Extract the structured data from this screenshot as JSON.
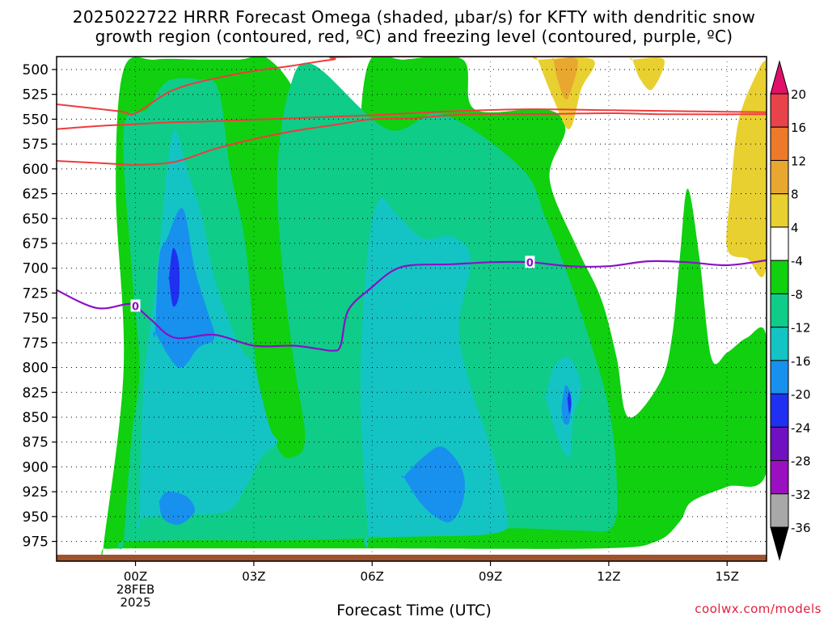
{
  "title_line1": "2025022722 HRRR Forecast Omega (shaded, µbar/s) for KFTY with dendritic snow",
  "title_line2": "growth region (contoured, red, ºC) and freezing level (contoured, purple, ºC)",
  "credit": "coolwx.com/models",
  "chart_data": {
    "type": "heatmap",
    "title": "2025022722 HRRR Forecast Omega (shaded, µbar/s) for KFTY with dendritic snow growth region (contoured, red, ºC) and freezing level (contoured, purple, ºC)",
    "xlabel": "Forecast Time (UTC)",
    "ylabel": "",
    "x_range_hours": [
      -2,
      16
    ],
    "y_range_mb": [
      487,
      990
    ],
    "y_ticks": [
      "500",
      "525",
      "550",
      "575",
      "600",
      "625",
      "650",
      "675",
      "700",
      "725",
      "750",
      "775",
      "800",
      "825",
      "850",
      "875",
      "900",
      "925",
      "950",
      "975"
    ],
    "x_ticks": [
      {
        "hour": 0,
        "lines": [
          "00Z",
          "28FEB",
          "2025"
        ]
      },
      {
        "hour": 3,
        "lines": [
          "03Z"
        ]
      },
      {
        "hour": 6,
        "lines": [
          "06Z"
        ]
      },
      {
        "hour": 9,
        "lines": [
          "09Z"
        ]
      },
      {
        "hour": 12,
        "lines": [
          "12Z"
        ]
      },
      {
        "hour": 15,
        "lines": [
          "15Z"
        ]
      }
    ],
    "colorbar": {
      "labels": [
        "20",
        "16",
        "12",
        "8",
        "4",
        "-4",
        "-8",
        "-12",
        "-16",
        "-20",
        "-24",
        "-28",
        "-32",
        "-36"
      ],
      "bins": [
        {
          "lo": 16,
          "hi": 20,
          "color": "#e8424a"
        },
        {
          "lo": 12,
          "hi": 16,
          "color": "#ec7a2a"
        },
        {
          "lo": 8,
          "hi": 12,
          "color": "#e8a830"
        },
        {
          "lo": 4,
          "hi": 8,
          "color": "#e8d030"
        },
        {
          "lo": -4,
          "hi": 4,
          "color": "#ffffff"
        },
        {
          "lo": -8,
          "hi": -4,
          "color": "#10d010"
        },
        {
          "lo": -12,
          "hi": -8,
          "color": "#0fcc88"
        },
        {
          "lo": -16,
          "hi": -12,
          "color": "#14c4c4"
        },
        {
          "lo": -20,
          "hi": -16,
          "color": "#1890ee"
        },
        {
          "lo": -24,
          "hi": -20,
          "color": "#2030f0"
        },
        {
          "lo": -28,
          "hi": -24,
          "color": "#7010c0"
        },
        {
          "lo": -32,
          "hi": -28,
          "color": "#9a10c0"
        },
        {
          "lo": -36,
          "hi": -32,
          "color": "#a8a8a8"
        }
      ],
      "top_arrow_color": "#e0106a",
      "bottom_arrow_color": "#000000"
    },
    "omega_regions": [
      {
        "level": "-4",
        "color": "#10d010",
        "polygon": [
          [
            -0.8,
            976
          ],
          [
            -0.3,
            800
          ],
          [
            -0.5,
            620
          ],
          [
            -0.3,
            500
          ],
          [
            0.5,
            490
          ],
          [
            1.6,
            490
          ],
          [
            2.6,
            490
          ],
          [
            3.4,
            490
          ],
          [
            4.2,
            540
          ],
          [
            4.5,
            650
          ],
          [
            4.7,
            820
          ],
          [
            4.9,
            880
          ],
          [
            5.3,
            860
          ],
          [
            5.4,
            760
          ],
          [
            5.6,
            620
          ],
          [
            5.9,
            495
          ],
          [
            6.8,
            490
          ],
          [
            8.3,
            490
          ],
          [
            8.6,
            540
          ],
          [
            10.4,
            540
          ],
          [
            10.9,
            560
          ],
          [
            10.5,
            610
          ],
          [
            11.2,
            680
          ],
          [
            11.8,
            730
          ],
          [
            12.2,
            790
          ],
          [
            12.5,
            850
          ],
          [
            13.3,
            815
          ],
          [
            13.6,
            770
          ],
          [
            13.8,
            690
          ],
          [
            14.0,
            620
          ],
          [
            14.3,
            690
          ],
          [
            14.6,
            790
          ],
          [
            15.0,
            785
          ],
          [
            15.5,
            770
          ],
          [
            16,
            770
          ],
          [
            16,
            905
          ],
          [
            15.0,
            920
          ],
          [
            14.1,
            935
          ],
          [
            13.8,
            955
          ],
          [
            13.2,
            975
          ],
          [
            11.8,
            982
          ],
          [
            6.0,
            982
          ],
          [
            2.5,
            982
          ],
          [
            -0.2,
            982
          ],
          [
            -0.8,
            982
          ]
        ]
      },
      {
        "level": "-8",
        "color": "#0fcc88",
        "polygon": [
          [
            -0.3,
            975
          ],
          [
            -0.1,
            870
          ],
          [
            0.1,
            800
          ],
          [
            -0.1,
            700
          ],
          [
            -0.3,
            560
          ],
          [
            0.3,
            540
          ],
          [
            0.8,
            512
          ],
          [
            1.6,
            510
          ],
          [
            2.1,
            520
          ],
          [
            2.4,
            600
          ],
          [
            2.8,
            680
          ],
          [
            3.1,
            810
          ],
          [
            3.6,
            880
          ],
          [
            4.0,
            890
          ],
          [
            4.3,
            870
          ],
          [
            4.0,
            790
          ],
          [
            3.7,
            690
          ],
          [
            3.6,
            600
          ],
          [
            3.9,
            520
          ],
          [
            4.5,
            495
          ],
          [
            6.4,
            560
          ],
          [
            7.8,
            545
          ],
          [
            9.8,
            600
          ],
          [
            10.4,
            650
          ],
          [
            10.9,
            700
          ],
          [
            11.5,
            770
          ],
          [
            12.0,
            840
          ],
          [
            12.2,
            910
          ],
          [
            12.1,
            960
          ],
          [
            11.2,
            964
          ],
          [
            9.4,
            962
          ],
          [
            7.0,
            970
          ],
          [
            4.0,
            974
          ],
          [
            1.5,
            974
          ],
          [
            -0.3,
            975
          ]
        ]
      },
      {
        "level": "-12",
        "color": "#14c4c4",
        "polygon": [
          [
            0.1,
            952
          ],
          [
            0.2,
            820
          ],
          [
            0.5,
            720
          ],
          [
            0.7,
            640
          ],
          [
            0.8,
            600
          ],
          [
            1.0,
            560
          ],
          [
            1.3,
            600
          ],
          [
            1.7,
            650
          ],
          [
            2.0,
            710
          ],
          [
            2.6,
            775
          ],
          [
            3.0,
            800
          ],
          [
            3.4,
            860
          ],
          [
            3.6,
            875
          ],
          [
            3.2,
            890
          ],
          [
            2.8,
            920
          ],
          [
            2.3,
            945
          ],
          [
            1.0,
            948
          ],
          [
            0.1,
            952
          ]
        ]
      },
      {
        "level": "-12",
        "color": "#14c4c4",
        "polygon": [
          [
            5.9,
            970
          ],
          [
            5.7,
            820
          ],
          [
            5.9,
            680
          ],
          [
            6.2,
            630
          ],
          [
            6.6,
            645
          ],
          [
            7.3,
            670
          ],
          [
            8.0,
            668
          ],
          [
            8.5,
            690
          ],
          [
            8.2,
            760
          ],
          [
            8.5,
            820
          ],
          [
            9.0,
            880
          ],
          [
            9.4,
            945
          ],
          [
            9.2,
            966
          ],
          [
            7.3,
            970
          ],
          [
            5.9,
            970
          ]
        ]
      },
      {
        "level": "-12",
        "color": "#14c4c4",
        "polygon": [
          [
            10.4,
            830
          ],
          [
            10.6,
            800
          ],
          [
            11.0,
            790
          ],
          [
            11.3,
            820
          ],
          [
            11.1,
            850
          ],
          [
            11.0,
            890
          ],
          [
            10.7,
            870
          ],
          [
            10.4,
            830
          ]
        ]
      },
      {
        "level": "-16",
        "color": "#1890ee",
        "polygon": [
          [
            0.5,
            765
          ],
          [
            0.6,
            690
          ],
          [
            0.8,
            670
          ],
          [
            1.2,
            640
          ],
          [
            1.5,
            700
          ],
          [
            1.8,
            740
          ],
          [
            2.0,
            770
          ],
          [
            1.6,
            780
          ],
          [
            1.1,
            800
          ],
          [
            0.5,
            765
          ]
        ]
      },
      {
        "level": "-16",
        "color": "#1890ee",
        "polygon": [
          [
            0.6,
            935
          ],
          [
            0.8,
            925
          ],
          [
            1.3,
            930
          ],
          [
            1.5,
            945
          ],
          [
            1.1,
            958
          ],
          [
            0.7,
            952
          ],
          [
            0.6,
            935
          ]
        ]
      },
      {
        "level": "-16",
        "color": "#1890ee",
        "polygon": [
          [
            6.8,
            910
          ],
          [
            7.3,
            890
          ],
          [
            7.8,
            880
          ],
          [
            8.3,
            905
          ],
          [
            8.3,
            935
          ],
          [
            8.0,
            955
          ],
          [
            7.6,
            950
          ],
          [
            7.2,
            935
          ],
          [
            6.8,
            910
          ]
        ]
      },
      {
        "level": "-16",
        "color": "#1890ee",
        "polygon": [
          [
            10.8,
            840
          ],
          [
            10.9,
            818
          ],
          [
            11.05,
            830
          ],
          [
            11.0,
            855
          ],
          [
            10.85,
            855
          ],
          [
            10.8,
            840
          ]
        ]
      },
      {
        "level": "-20",
        "color": "#2030f0",
        "polygon": [
          [
            0.85,
            710
          ],
          [
            0.95,
            680
          ],
          [
            1.1,
            695
          ],
          [
            1.1,
            728
          ],
          [
            0.95,
            738
          ],
          [
            0.85,
            710
          ]
        ]
      },
      {
        "level": "-20",
        "color": "#2030f0",
        "polygon": [
          [
            10.95,
            832
          ],
          [
            11.0,
            824
          ],
          [
            11.05,
            836
          ],
          [
            11.0,
            846
          ],
          [
            10.95,
            832
          ]
        ]
      },
      {
        "level": "4",
        "color": "#e8d030",
        "polygon": [
          [
            10.2,
            490
          ],
          [
            11.6,
            490
          ],
          [
            11.3,
            520
          ],
          [
            11.0,
            560
          ],
          [
            10.6,
            530
          ],
          [
            10.2,
            490
          ]
        ]
      },
      {
        "level": "4",
        "color": "#e8d030",
        "polygon": [
          [
            12.6,
            490
          ],
          [
            13.4,
            490
          ],
          [
            13.1,
            520
          ],
          [
            12.8,
            510
          ],
          [
            12.6,
            490
          ]
        ]
      },
      {
        "level": "4",
        "color": "#e8d030",
        "polygon": [
          [
            16,
            490
          ],
          [
            15.8,
            500
          ],
          [
            15.3,
            550
          ],
          [
            15.1,
            620
          ],
          [
            15.0,
            680
          ],
          [
            15.5,
            690
          ],
          [
            16,
            695
          ],
          [
            16,
            490
          ]
        ]
      },
      {
        "level": "8",
        "color": "#e8a830",
        "polygon": [
          [
            10.6,
            490
          ],
          [
            11.2,
            490
          ],
          [
            11.05,
            520
          ],
          [
            10.9,
            530
          ],
          [
            10.7,
            510
          ],
          [
            10.6,
            490
          ]
        ]
      }
    ],
    "dgz_contours_red": [
      {
        "name": "upper",
        "points": [
          [
            -2,
            535
          ],
          [
            -0.4,
            542
          ],
          [
            0,
            544
          ],
          [
            1,
            520
          ],
          [
            2.5,
            505
          ],
          [
            4,
            496
          ],
          [
            5,
            490
          ],
          [
            6,
            487
          ],
          [
            16,
            487
          ]
        ]
      },
      {
        "name": "middle",
        "points": [
          [
            -2,
            560
          ],
          [
            -1,
            557
          ],
          [
            0,
            555
          ],
          [
            1,
            553
          ],
          [
            2,
            552
          ],
          [
            4,
            549
          ],
          [
            6,
            546
          ],
          [
            8,
            542
          ],
          [
            10,
            540
          ],
          [
            12,
            541
          ],
          [
            14,
            542
          ],
          [
            16,
            543
          ]
        ]
      },
      {
        "name": "lower",
        "points": [
          [
            -2,
            592
          ],
          [
            -0.5,
            595
          ],
          [
            0,
            596
          ],
          [
            1,
            593
          ],
          [
            2,
            580
          ],
          [
            3,
            570
          ],
          [
            4,
            562
          ],
          [
            5,
            556
          ],
          [
            6,
            550
          ],
          [
            7,
            549
          ],
          [
            8,
            546
          ],
          [
            9,
            545
          ],
          [
            10,
            545
          ],
          [
            12,
            544
          ],
          [
            13.5,
            545
          ],
          [
            16,
            545
          ]
        ]
      }
    ],
    "freezing_level_purple": {
      "label": "0",
      "label_positions_hours": [
        0,
        10
      ],
      "points": [
        [
          -2,
          722
        ],
        [
          -1,
          740
        ],
        [
          -0.2,
          736
        ],
        [
          0,
          738
        ],
        [
          0.4,
          752
        ],
        [
          1,
          770
        ],
        [
          2,
          767
        ],
        [
          3,
          778
        ],
        [
          4,
          778
        ],
        [
          4.6,
          781
        ],
        [
          5,
          783
        ],
        [
          5.2,
          778
        ],
        [
          5.4,
          742
        ],
        [
          6,
          719
        ],
        [
          6.5,
          703
        ],
        [
          7,
          697
        ],
        [
          8,
          696
        ],
        [
          9,
          694
        ],
        [
          10,
          694
        ],
        [
          11,
          698
        ],
        [
          12,
          698
        ],
        [
          13,
          693
        ],
        [
          14,
          694
        ],
        [
          15,
          697
        ],
        [
          16,
          692
        ]
      ]
    }
  }
}
